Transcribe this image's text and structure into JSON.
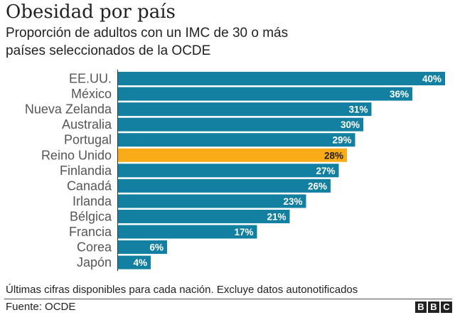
{
  "chart_data": {
    "type": "bar",
    "orientation": "horizontal",
    "title": "Obesidad por país",
    "subtitle_lines": [
      "Proporción de adultos con un IMC de 30 o más",
      "países seleccionados de la OCDE"
    ],
    "categories": [
      "EE.UU.",
      "México",
      "Nueva Zelanda",
      "Australia",
      "Portugal",
      "Reino Unido",
      "Finlandia",
      "Canadá",
      "Irlanda",
      "Bélgica",
      "Francia",
      "Corea",
      "Japón"
    ],
    "values": [
      40,
      36,
      31,
      30,
      29,
      28,
      27,
      26,
      23,
      21,
      17,
      6,
      4
    ],
    "data_labels": [
      "40%",
      "36%",
      "31%",
      "30%",
      "29%",
      "28%",
      "27%",
      "26%",
      "23%",
      "21%",
      "17%",
      "6%",
      "4%"
    ],
    "highlight": "Reino Unido",
    "xlim": [
      0,
      40
    ],
    "grid": false,
    "colors": {
      "bar": "#1380A1",
      "highlight": "#FAAB18"
    }
  },
  "footer": {
    "note": "Últimas cifras disponibles para cada nación. Excluye datos autonotificados",
    "source": "Fuente: OCDE",
    "logo": [
      "B",
      "B",
      "C"
    ]
  }
}
